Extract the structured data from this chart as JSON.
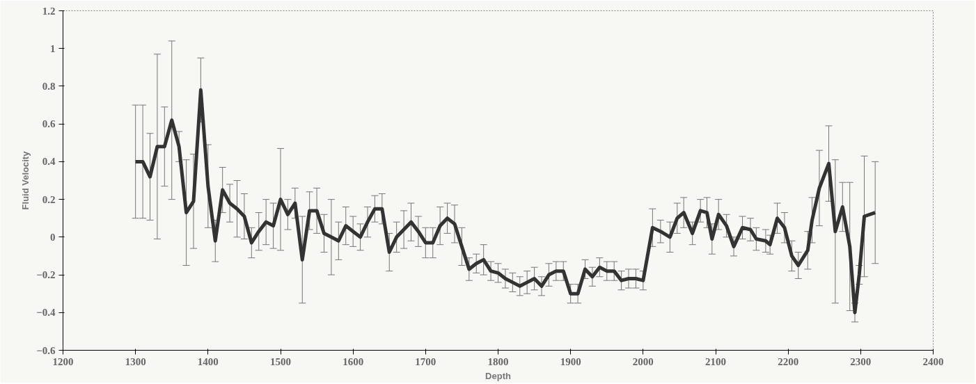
{
  "chart_data": {
    "type": "line",
    "xlabel": "Depth",
    "ylabel": "Fluid Velocity",
    "xlim": [
      1200,
      2400
    ],
    "xticks": [
      1200,
      1300,
      1400,
      1500,
      1600,
      1700,
      1800,
      1900,
      2000,
      2100,
      2200,
      2300,
      2400
    ],
    "ylim": [
      -0.6,
      1.2
    ],
    "yticks": [
      -0.6,
      -0.4,
      -0.2,
      0,
      0.2,
      0.4,
      0.6,
      0.8,
      1,
      1.2
    ],
    "grid": false,
    "marker": "none",
    "line_style": "solid",
    "series": [
      {
        "color": "#333333",
        "x": [
          1300,
          1310,
          1320,
          1330,
          1340,
          1350,
          1360,
          1370,
          1380,
          1390,
          1400,
          1410,
          1420,
          1430,
          1440,
          1450,
          1460,
          1470,
          1480,
          1490,
          1500,
          1510,
          1520,
          1530,
          1540,
          1550,
          1560,
          1570,
          1580,
          1590,
          1600,
          1610,
          1620,
          1630,
          1640,
          1650,
          1660,
          1670,
          1680,
          1690,
          1700,
          1710,
          1720,
          1730,
          1740,
          1750,
          1760,
          1770,
          1780,
          1790,
          1800,
          1810,
          1820,
          1830,
          1840,
          1850,
          1860,
          1870,
          1880,
          1890,
          1900,
          1910,
          1920,
          1930,
          1940,
          1950,
          1960,
          1970,
          1980,
          1990,
          2000,
          2013,
          2024,
          2037,
          2047,
          2056,
          2068,
          2079,
          2088,
          2095,
          2104,
          2115,
          2125,
          2137,
          2148,
          2156,
          2169,
          2175,
          2185,
          2195,
          2205,
          2214,
          2227,
          2233,
          2243,
          2256,
          2265,
          2275,
          2285,
          2292,
          2298,
          2305,
          2320
        ],
        "values": [
          0.4,
          0.4,
          0.32,
          0.48,
          0.48,
          0.62,
          0.48,
          0.13,
          0.19,
          0.78,
          0.27,
          -0.02,
          0.25,
          0.18,
          0.15,
          0.11,
          -0.03,
          0.03,
          0.08,
          0.06,
          0.2,
          0.12,
          0.18,
          -0.12,
          0.14,
          0.14,
          0.02,
          0.0,
          -0.02,
          0.06,
          0.03,
          0.0,
          0.08,
          0.15,
          0.15,
          -0.08,
          0.0,
          0.04,
          0.08,
          0.03,
          -0.03,
          -0.03,
          0.06,
          0.1,
          0.07,
          -0.05,
          -0.17,
          -0.14,
          -0.12,
          -0.18,
          -0.19,
          -0.22,
          -0.24,
          -0.26,
          -0.24,
          -0.22,
          -0.26,
          -0.2,
          -0.18,
          -0.18,
          -0.3,
          -0.3,
          -0.17,
          -0.21,
          -0.16,
          -0.18,
          -0.18,
          -0.23,
          -0.22,
          -0.22,
          -0.23,
          0.05,
          0.03,
          0.0,
          0.1,
          0.13,
          0.02,
          0.14,
          0.13,
          -0.01,
          0.12,
          0.06,
          -0.05,
          0.05,
          0.04,
          -0.01,
          -0.02,
          -0.04,
          0.1,
          0.05,
          -0.1,
          -0.15,
          -0.07,
          0.09,
          0.26,
          0.39,
          0.03,
          0.16,
          -0.05,
          -0.4,
          -0.2,
          0.11,
          0.13
        ],
        "errors": [
          0.3,
          0.3,
          0.23,
          0.49,
          0.21,
          0.42,
          0.08,
          0.28,
          0.25,
          0.17,
          0.22,
          0.11,
          0.12,
          0.1,
          0.15,
          0.12,
          0.08,
          0.1,
          0.12,
          0.12,
          0.27,
          0.08,
          0.08,
          0.23,
          0.1,
          0.12,
          0.1,
          0.2,
          0.1,
          0.1,
          0.08,
          0.07,
          0.08,
          0.07,
          0.08,
          0.1,
          0.08,
          0.1,
          0.1,
          0.08,
          0.08,
          0.08,
          0.1,
          0.08,
          0.1,
          0.1,
          0.06,
          0.05,
          0.08,
          0.05,
          0.05,
          0.05,
          0.05,
          0.05,
          0.06,
          0.06,
          0.05,
          0.06,
          0.05,
          0.05,
          0.05,
          0.05,
          0.05,
          0.05,
          0.05,
          0.05,
          0.05,
          0.05,
          0.05,
          0.05,
          0.05,
          0.1,
          0.06,
          0.08,
          0.08,
          0.08,
          0.06,
          0.06,
          0.08,
          0.08,
          0.08,
          0.06,
          0.05,
          0.06,
          0.06,
          0.06,
          0.06,
          0.05,
          0.08,
          0.08,
          0.08,
          0.07,
          0.1,
          0.12,
          0.2,
          0.2,
          0.38,
          0.13,
          0.34,
          0.05,
          0.05,
          0.32,
          0.27
        ]
      }
    ]
  }
}
